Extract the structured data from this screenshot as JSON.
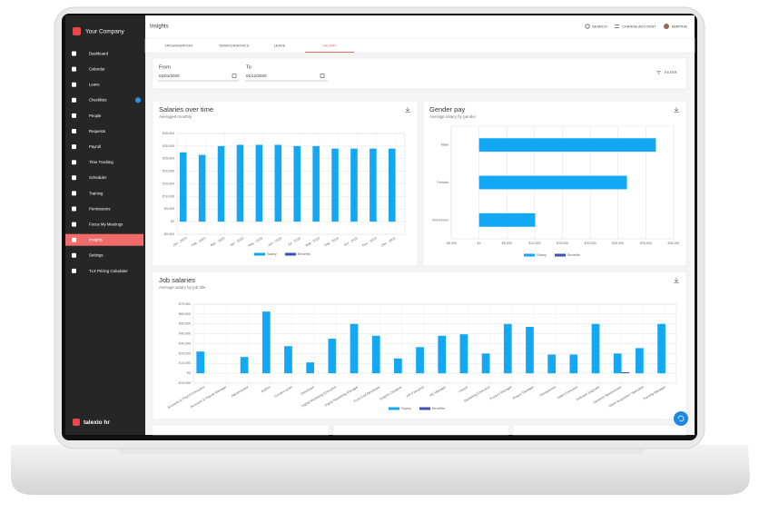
{
  "sidebar": {
    "company": "Your Company",
    "brand": "talexio hr",
    "active": 12,
    "menu": [
      "Dashboard",
      "Calendar",
      "Leave",
      "Checklists",
      "People",
      "Requests",
      "Payroll",
      "Time Tracking",
      "Scheduler",
      "Training",
      "Permissions",
      "Focus My Meetings",
      "Insights",
      "Settings",
      "TLX Pricing Calculator"
    ]
  },
  "header": {
    "title": "Insights",
    "search": "SEARCH",
    "change_account": "CHANGE ACCOUNT",
    "user": "MARTHA"
  },
  "tabs": {
    "items": [
      "ORGANISATION",
      "DEMOGRAPHICS",
      "LEAVE",
      "SALARY"
    ],
    "active": 3
  },
  "filters": {
    "from_label": "From",
    "from_value": "01/01/2020",
    "to_label": "To",
    "to_value": "01/12/2020",
    "button": "FILTER"
  },
  "chart_data": [
    {
      "type": "bar",
      "title": "Salaries over time",
      "subtitle": "Averaged monthly",
      "categories": [
        "Jan - 2020",
        "Feb - 2020",
        "Mar - 2020",
        "Apr - 2020",
        "May - 2020",
        "Jun - 2020",
        "Jul - 2020",
        "Aug - 2020",
        "Sep - 2020",
        "Oct - 2020",
        "Nov - 2020",
        "Dec - 2020"
      ],
      "series": [
        {
          "name": "Salary",
          "color": "#12a8f3",
          "values": [
            27500,
            26500,
            30000,
            30500,
            30500,
            30500,
            30000,
            30000,
            29000,
            29000,
            29000,
            29000
          ]
        },
        {
          "name": "Benefits",
          "color": "#3f51b5",
          "values": [
            0,
            0,
            0,
            0,
            0,
            0,
            0,
            0,
            0,
            0,
            0,
            0
          ]
        }
      ],
      "ylim": [
        -5000,
        35000
      ],
      "yticks": [
        {
          "value": -5000,
          "label": "-€5,000"
        },
        {
          "value": 0,
          "label": "€0"
        },
        {
          "value": 5000,
          "label": "€5,000"
        },
        {
          "value": 10000,
          "label": "€10,000"
        },
        {
          "value": 15000,
          "label": "€15,000"
        },
        {
          "value": 20000,
          "label": "€20,000"
        },
        {
          "value": 25000,
          "label": "€25,000"
        },
        {
          "value": 30000,
          "label": "€30,000"
        },
        {
          "value": 35000,
          "label": "€35,000"
        }
      ],
      "grid": true,
      "legend": "bottom"
    },
    {
      "type": "hbar",
      "title": "Gender pay",
      "subtitle": "Average salary by gender",
      "categories": [
        "Male",
        "Female",
        "Not known"
      ],
      "series": [
        {
          "name": "Salary",
          "color": "#12a8f3",
          "values": [
            31800,
            26600,
            10100
          ]
        },
        {
          "name": "Benefits",
          "color": "#3f51b5",
          "values": [
            0,
            0,
            0
          ]
        }
      ],
      "xlim": [
        -5000,
        35000
      ],
      "xticks": [
        {
          "value": -5000,
          "label": "-€5,000"
        },
        {
          "value": 0,
          "label": "€0"
        },
        {
          "value": 5000,
          "label": "€5,000"
        },
        {
          "value": 10000,
          "label": "€10,000"
        },
        {
          "value": 15000,
          "label": "€15,000"
        },
        {
          "value": 20000,
          "label": "€20,000"
        },
        {
          "value": 25000,
          "label": "€25,000"
        },
        {
          "value": 30000,
          "label": "€30,000"
        },
        {
          "value": 35000,
          "label": "€35,000"
        }
      ],
      "grid": true,
      "legend": "bottom"
    },
    {
      "type": "bar",
      "title": "Job salaries",
      "subtitle": "Average salary by job title",
      "categories": [
        "Accounts & Payroll Executive",
        "Accounts & Payroll Manager",
        "Administrator",
        "Auditor",
        "Content writer",
        "Developer",
        "Digital Marketing Executive",
        "Digital Marketing Manager",
        "Front End Developer",
        "Graphic Designer",
        "HR Executive",
        "HR Manager",
        "Lawyer",
        "Marketing Executive",
        "Product Manager",
        "Project Manager",
        "Receptionist",
        "Sales Executive",
        "Software Engineer",
        "Systems Administrator",
        "Talent Acquisition Specialist",
        "Training Manager"
      ],
      "series": [
        {
          "name": "Salary",
          "color": "#12a8f3",
          "values": [
            22000,
            0,
            16500,
            62500,
            27500,
            11000,
            35000,
            50000,
            38000,
            15000,
            26500,
            38000,
            39500,
            20000,
            50000,
            47000,
            19000,
            19000,
            50000,
            20000,
            25500,
            50000
          ]
        },
        {
          "name": "Benefits",
          "color": "#3f51b5",
          "values": [
            0,
            0,
            0,
            0,
            0,
            0,
            0,
            0,
            0,
            0,
            0,
            0,
            0,
            0,
            0,
            0,
            0,
            0,
            0,
            1000,
            0,
            0
          ]
        }
      ],
      "ylim": [
        -10000,
        70000
      ],
      "yticks": [
        {
          "value": -10000,
          "label": "-€10,000"
        },
        {
          "value": 0,
          "label": "€0"
        },
        {
          "value": 10000,
          "label": "€10,000"
        },
        {
          "value": 20000,
          "label": "€20,000"
        },
        {
          "value": 30000,
          "label": "€30,000"
        },
        {
          "value": 40000,
          "label": "€40,000"
        },
        {
          "value": 50000,
          "label": "€50,000"
        },
        {
          "value": 60000,
          "label": "€60,000"
        },
        {
          "value": 70000,
          "label": "€70,000"
        }
      ],
      "grid": true,
      "legend": "bottom"
    }
  ]
}
